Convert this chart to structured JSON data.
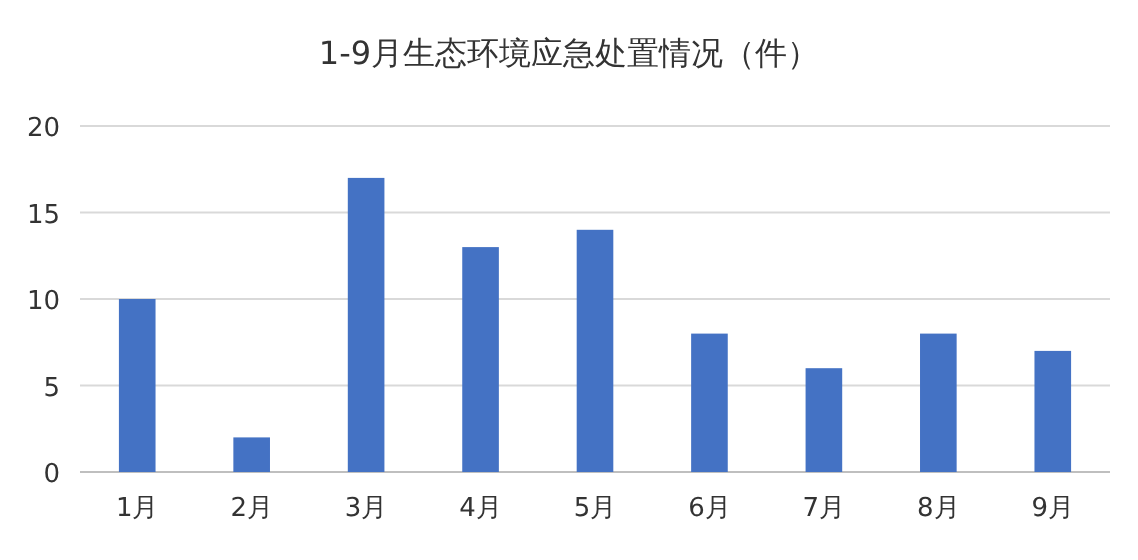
{
  "chart_data": {
    "type": "bar",
    "title": "1-9月生态环境应急处置情况（件）",
    "categories": [
      "1月",
      "2月",
      "3月",
      "4月",
      "5月",
      "6月",
      "7月",
      "8月",
      "9月"
    ],
    "values": [
      10,
      2,
      17,
      13,
      14,
      8,
      6,
      8,
      7
    ],
    "color": "#4472c4",
    "ylim": [
      0,
      20
    ],
    "yticks": [
      0,
      5,
      10,
      15,
      20
    ],
    "grid": "y"
  }
}
